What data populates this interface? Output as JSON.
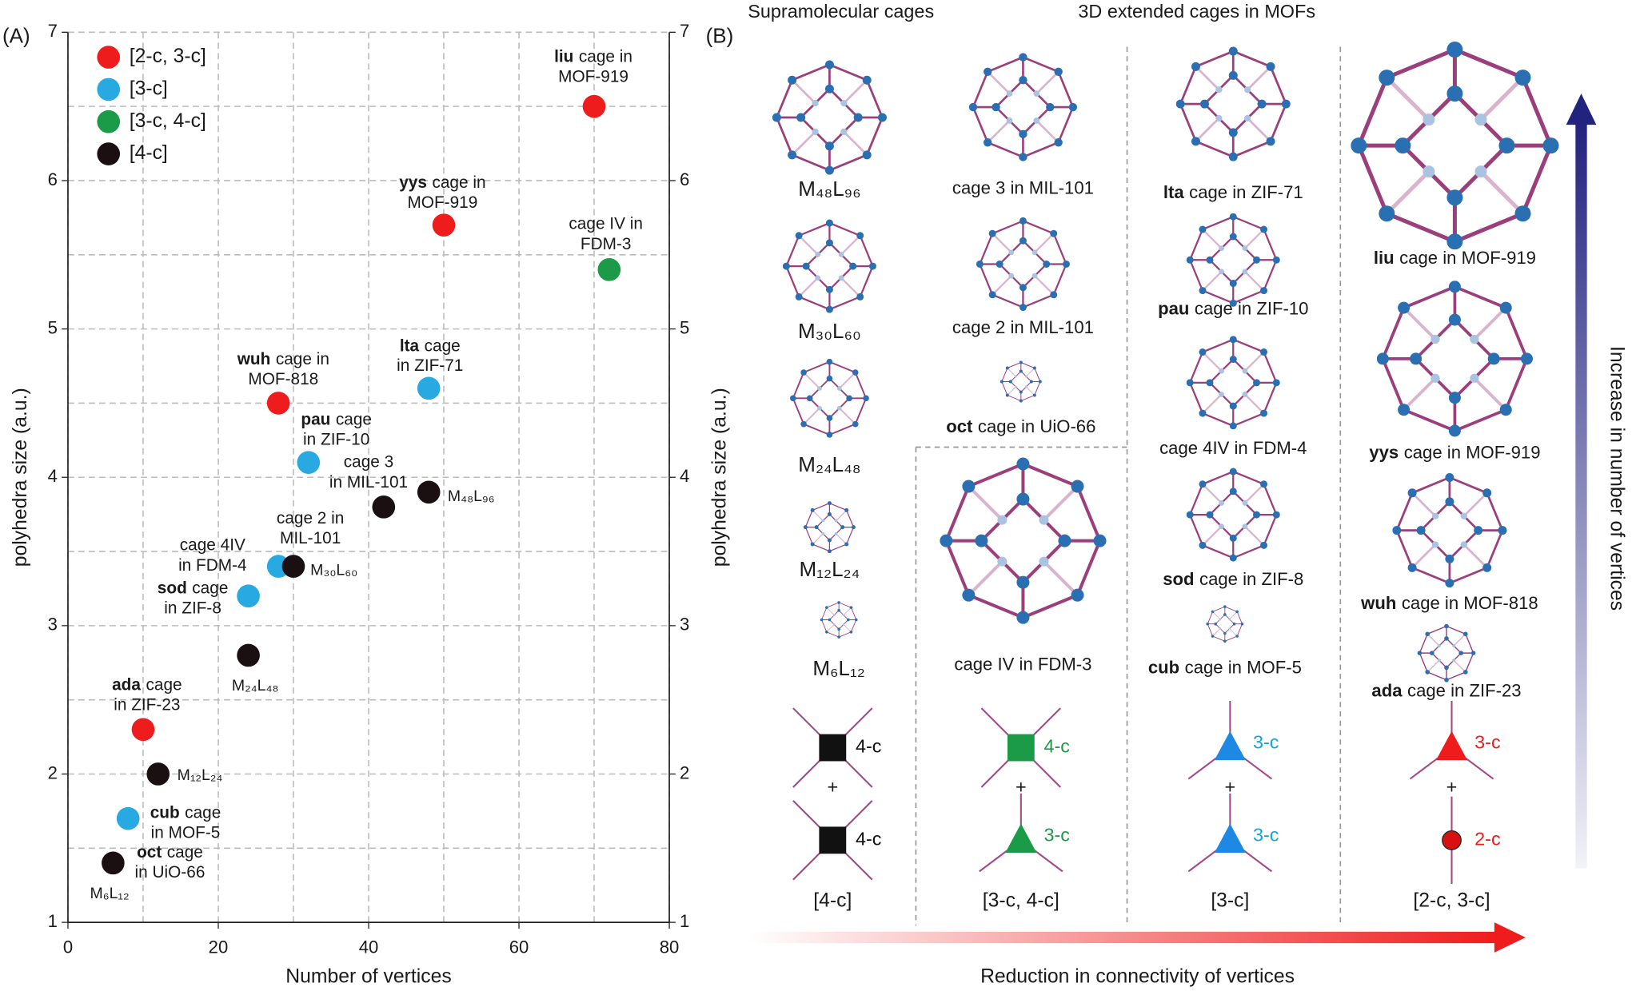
{
  "chart_data": {
    "type": "scatter",
    "panel_label": "(A)",
    "xlabel": "Number of vertices",
    "ylabel": "polyhedra size (a.u.)",
    "xlim": [
      0,
      80
    ],
    "xticks": [
      0,
      20,
      40,
      60,
      80
    ],
    "minor_xticks": [
      10,
      30,
      50,
      70
    ],
    "ylim": [
      1,
      7
    ],
    "yticks": [
      1,
      2,
      3,
      4,
      5,
      6,
      7
    ],
    "minor_yticks": [
      1.5,
      2.5,
      3.5,
      4.5,
      5.5,
      6.5
    ],
    "grid": true,
    "right_axis": true,
    "legend": "upper left",
    "series": [
      {
        "name": "[2-c, 3-c]",
        "color": "#ee1c1c",
        "x": [
          70,
          50,
          28,
          10
        ],
        "values": [
          6.5,
          5.7,
          4.5,
          2.3
        ]
      },
      {
        "name": "[3-c]",
        "color": "#29a9e1",
        "x": [
          48,
          32,
          28,
          24,
          8
        ],
        "values": [
          4.6,
          4.1,
          3.4,
          3.2,
          1.7
        ]
      },
      {
        "name": "[3-c, 4-c]",
        "color": "#1b9a47",
        "x": [
          72
        ],
        "values": [
          5.4
        ]
      },
      {
        "name": "[4-c]",
        "color": "#1a1012",
        "x": [
          48,
          42,
          30,
          24,
          12,
          6
        ],
        "values": [
          3.9,
          3.8,
          3.4,
          2.8,
          2.0,
          1.4
        ]
      }
    ],
    "annotations": [
      {
        "head": "liu",
        "lines": [
          "cage in",
          "MOF-919"
        ]
      },
      {
        "head": "yys",
        "lines": [
          "cage in",
          "MOF-919"
        ]
      },
      {
        "lines": [
          "cage IV in",
          "FDM-3"
        ]
      },
      {
        "head": "lta",
        "lines": [
          "cage",
          "in ZIF-71"
        ]
      },
      {
        "head": "wuh",
        "lines": [
          "cage in",
          "MOF-818"
        ]
      },
      {
        "head": "pau",
        "lines": [
          "cage",
          "in ZIF-10"
        ]
      },
      {
        "lines": [
          "cage 3",
          "in MIL-101"
        ]
      },
      {
        "lines": [
          "M₄₈L₉₆"
        ]
      },
      {
        "lines": [
          "cage 2 in",
          "MIL-101"
        ]
      },
      {
        "lines": [
          "cage 4IV",
          "in FDM-4"
        ]
      },
      {
        "lines": [
          "M₃₀L₆₀"
        ]
      },
      {
        "head": "sod",
        "lines": [
          "cage",
          "in ZIF-8"
        ]
      },
      {
        "lines": [
          "M₂₄L₄₈"
        ]
      },
      {
        "head": "ada",
        "lines": [
          "cage",
          "in ZIF-23"
        ]
      },
      {
        "lines": [
          "M₁₂L₂₄"
        ]
      },
      {
        "head": "cub",
        "lines": [
          "cage",
          "in MOF-5"
        ]
      },
      {
        "head": "oct",
        "lines": [
          "cage",
          "in UiO-66"
        ]
      },
      {
        "lines": [
          "M₆L₁₂"
        ]
      }
    ]
  },
  "panel_b": {
    "panel_label": "(B)",
    "headers": [
      "Supramolecular cages",
      "3D extended cages in MOFs"
    ],
    "plus": "+",
    "x_arrow_label": "Reduction in connectivity of vertices",
    "y_arrow_label": "Increase in number of vertices",
    "columns": [
      {
        "label": "[4-c]",
        "nodes": [
          "4-c",
          "4-c"
        ],
        "cages": [
          {
            "text": "M₄₈L₉₆"
          },
          {
            "text": "M₃₀L₆₀"
          },
          {
            "text": "M₂₄L₄₈"
          },
          {
            "text": "M₁₂L₂₄"
          },
          {
            "text": "M₆L₁₂"
          }
        ]
      },
      {
        "label": "[3-c, 4-c]",
        "nodes": [
          "4-c",
          "3-c"
        ],
        "cages": [
          {
            "text": "cage 3 in MIL-101"
          },
          {
            "text": "cage 2 in MIL-101"
          },
          {
            "head": "oct",
            "text": "cage in UiO-66"
          },
          {
            "text": "cage IV in FDM-3"
          }
        ]
      },
      {
        "label": "[3-c]",
        "nodes": [
          "3-c",
          "3-c"
        ],
        "cages": [
          {
            "head": "lta",
            "text": "cage in ZIF-71"
          },
          {
            "head": "pau",
            "text": "cage in ZIF-10"
          },
          {
            "text": "cage 4IV in FDM-4"
          },
          {
            "head": "sod",
            "text": "cage in ZIF-8"
          },
          {
            "head": "cub",
            "text": "cage in MOF-5"
          }
        ]
      },
      {
        "label": "[2-c, 3-c]",
        "nodes": [
          "3-c",
          "2-c"
        ],
        "cages": [
          {
            "head": "liu",
            "text": "cage in MOF-919"
          },
          {
            "head": "yys",
            "text": "cage in MOF-919"
          },
          {
            "head": "wuh",
            "text": "cage in MOF-818"
          },
          {
            "head": "ada",
            "text": "cage in ZIF-23"
          }
        ]
      }
    ]
  }
}
